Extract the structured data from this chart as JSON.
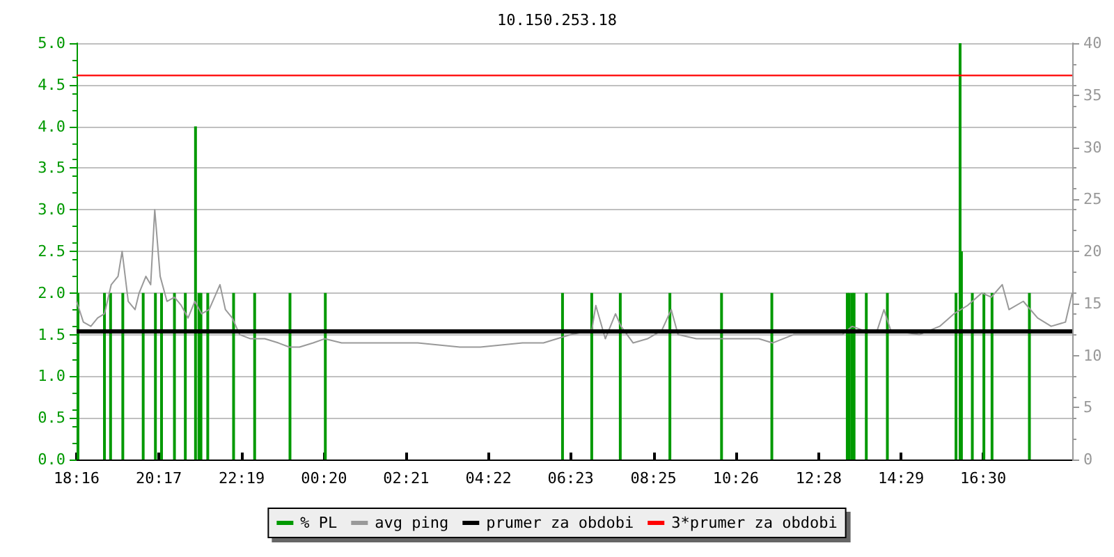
{
  "chart_data": {
    "type": "line",
    "title": "10.150.253.18",
    "xlim": [
      "--01-01T18:16",
      "--01-02T18:41"
    ],
    "xticks": [
      {
        "value": "--01-01T18:16",
        "label": "18:16"
      },
      {
        "value": "--01-01T20:17",
        "label": "20:17"
      },
      {
        "value": "--01-01T22:19",
        "label": "22:19"
      },
      {
        "value": "--01-02T00:20",
        "label": "00:20"
      },
      {
        "value": "--01-02T02:21",
        "label": "02:21"
      },
      {
        "value": "--01-02T04:22",
        "label": "04:22"
      },
      {
        "value": "--01-02T06:23",
        "label": "06:23"
      },
      {
        "value": "--01-02T08:25",
        "label": "08:25"
      },
      {
        "value": "--01-02T10:26",
        "label": "10:26"
      },
      {
        "value": "--01-02T12:28",
        "label": "12:28"
      },
      {
        "value": "--01-02T14:29",
        "label": "14:29"
      },
      {
        "value": "--01-02T16:30",
        "label": "16:30"
      }
    ],
    "ylim": [
      0,
      5
    ],
    "yticks": [
      {
        "value": 0,
        "label": "0.0"
      },
      {
        "value": 0.5,
        "label": "0.5"
      },
      {
        "value": 1,
        "label": "1.0"
      },
      {
        "value": 1.5,
        "label": "1.5"
      },
      {
        "value": 2,
        "label": "2.0"
      },
      {
        "value": 2.5,
        "label": "2.5"
      },
      {
        "value": 3,
        "label": "3.0"
      },
      {
        "value": 3.5,
        "label": "3.5"
      },
      {
        "value": 4,
        "label": "4.0"
      },
      {
        "value": 4.5,
        "label": "4.5"
      },
      {
        "value": 5,
        "label": "5.0"
      }
    ],
    "y2lim": [
      0,
      40
    ],
    "y2ticks": [
      0,
      5,
      10,
      15,
      20,
      25,
      30,
      35,
      40
    ],
    "grid": "y",
    "legend": "bottom",
    "marker": "none",
    "series": [
      {
        "name": "% PL",
        "type": "bar",
        "color": "#009900",
        "x": [
          "--01-01T18:18",
          "--01-01T18:57",
          "--01-01T19:06",
          "--01-01T19:24",
          "--01-01T19:54",
          "--01-01T20:12",
          "--01-01T20:21",
          "--01-01T20:40",
          "--01-01T20:56",
          "--01-01T21:11",
          "--01-01T21:16",
          "--01-01T21:19",
          "--01-01T21:29",
          "--01-01T22:07",
          "--01-01T22:38",
          "--01-01T23:30",
          "--01-02T00:22",
          "--01-02T06:11",
          "--01-02T06:54",
          "--01-02T07:36",
          "--01-02T08:49",
          "--01-02T10:05",
          "--01-02T11:19",
          "--01-02T13:10",
          "--01-02T13:13",
          "--01-02T13:17",
          "--01-02T13:20",
          "--01-02T13:38",
          "--01-02T14:09",
          "--01-02T15:50",
          "--01-02T15:56",
          "--01-02T15:58",
          "--01-02T16:14",
          "--01-02T16:31",
          "--01-02T16:43",
          "--01-02T17:38"
        ],
        "values": [
          2,
          2,
          2,
          2,
          2,
          2,
          2,
          2,
          2,
          4,
          2,
          2,
          2,
          2,
          2,
          2,
          2,
          2,
          2,
          2,
          2,
          2,
          2,
          2,
          2,
          2,
          2,
          2,
          2,
          2,
          5,
          2.5,
          2,
          2,
          2,
          2
        ]
      },
      {
        "name": "avg ping",
        "axis": "y2",
        "color": "#999999",
        "x": [
          "--01-01T18:16",
          "--01-01T18:26",
          "--01-01T18:37",
          "--01-01T18:47",
          "--01-01T18:57",
          "--01-01T19:07",
          "--01-01T19:17",
          "--01-01T19:23",
          "--01-01T19:32",
          "--01-01T19:42",
          "--01-01T19:48",
          "--01-01T19:58",
          "--01-01T20:05",
          "--01-01T20:11",
          "--01-01T20:19",
          "--01-01T20:29",
          "--01-01T20:40",
          "--01-01T20:50",
          "--01-01T21:00",
          "--01-01T21:10",
          "--01-01T21:20",
          "--01-01T21:31",
          "--01-01T21:47",
          "--01-01T21:55",
          "--01-01T22:05",
          "--01-01T22:16",
          "--01-01T22:32",
          "--01-01T22:53",
          "--01-01T23:13",
          "--01-01T23:29",
          "--01-01T23:44",
          "--01-02T00:04",
          "--01-02T00:21",
          "--01-02T00:46",
          "--01-02T01:06",
          "--01-02T01:37",
          "--01-02T02:07",
          "--01-02T02:38",
          "--01-02T03:09",
          "--01-02T03:40",
          "--01-02T04:10",
          "--01-02T04:41",
          "--01-02T05:12",
          "--01-02T05:43",
          "--01-02T06:03",
          "--01-02T06:23",
          "--01-02T06:54",
          "--01-02T07:00",
          "--01-02T07:14",
          "--01-02T07:29",
          "--01-02T07:37",
          "--01-02T07:55",
          "--01-02T08:16",
          "--01-02T08:37",
          "--01-02T08:51",
          "--01-02T09:01",
          "--01-02T09:28",
          "--01-02T09:59",
          "--01-02T10:29",
          "--01-02T11:00",
          "--01-02T11:20",
          "--01-02T11:51",
          "--01-02T12:32",
          "--01-02T13:03",
          "--01-02T13:17",
          "--01-02T13:34",
          "--01-02T13:54",
          "--01-02T14:04",
          "--01-02T14:14",
          "--01-02T14:56",
          "--01-02T15:26",
          "--01-02T15:47",
          "--01-02T16:07",
          "--01-02T16:28",
          "--01-02T16:42",
          "--01-02T16:58",
          "--01-02T17:08",
          "--01-02T17:29",
          "--01-02T17:50",
          "--01-02T18:10",
          "--01-02T18:31",
          "--01-02T18:41"
        ],
        "values": [
          15.2,
          13.2,
          12.8,
          13.6,
          14,
          16.8,
          17.6,
          20,
          15.2,
          14.4,
          16,
          17.6,
          16.8,
          24,
          17.6,
          15.2,
          15.6,
          14.8,
          13.6,
          15.2,
          14,
          14.4,
          16.8,
          14.4,
          13.6,
          12,
          11.6,
          11.6,
          11.2,
          10.8,
          10.8,
          11.2,
          11.6,
          11.2,
          11.2,
          11.2,
          11.2,
          11.2,
          11,
          10.8,
          10.8,
          11,
          11.2,
          11.2,
          11.6,
          12,
          12.4,
          14.8,
          11.6,
          14,
          12.8,
          11.2,
          11.6,
          12.4,
          14.4,
          12,
          11.6,
          11.6,
          11.6,
          11.6,
          11.2,
          12,
          12,
          12,
          12.8,
          12.4,
          12.4,
          14.4,
          12.4,
          12,
          12.8,
          14,
          14.8,
          16,
          15.6,
          16.8,
          14.4,
          15.2,
          13.6,
          12.8,
          13.2,
          16
        ]
      },
      {
        "name": "prumer za obdobi",
        "axis": "y2",
        "color": "#000000",
        "x": [
          "--01-01T18:16",
          "--01-02T18:41"
        ],
        "values": [
          12.3,
          12.3
        ]
      },
      {
        "name": "3*prumer za obdobi",
        "axis": "y2",
        "color": "#ff0000",
        "x": [
          "--01-01T18:16",
          "--01-02T18:41"
        ],
        "values": [
          36.9,
          36.9
        ]
      }
    ]
  }
}
